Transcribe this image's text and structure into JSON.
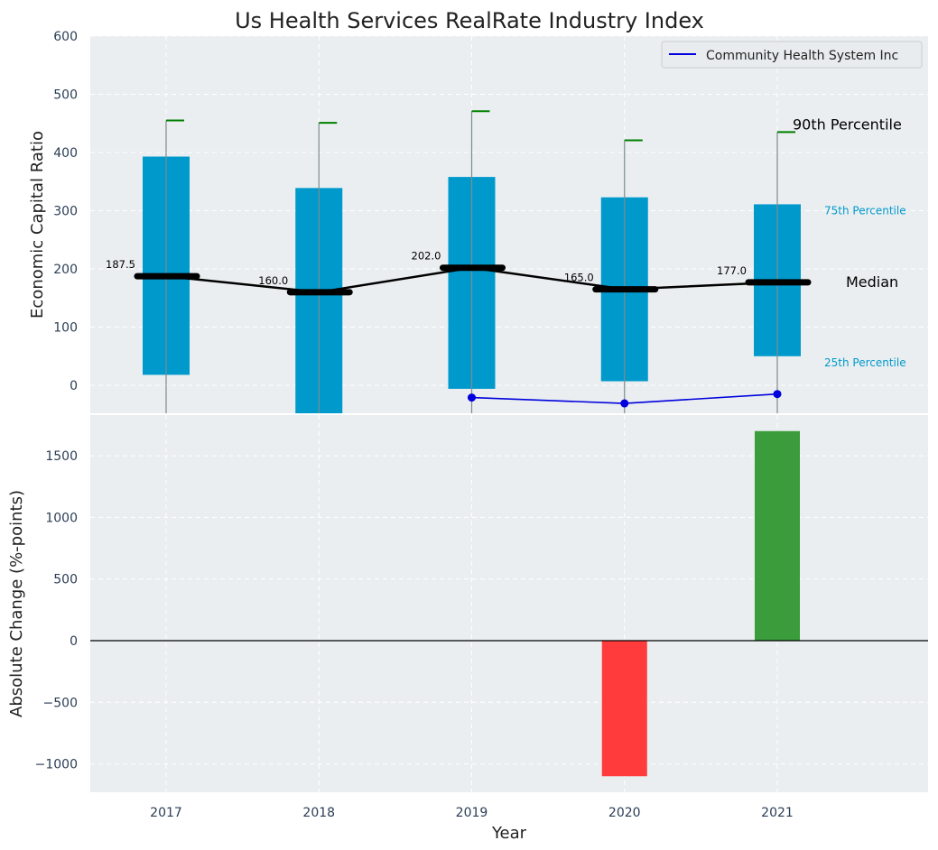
{
  "chart_data": [
    {
      "type": "box",
      "title": "Us Health Services RealRate Industry Index",
      "ylabel": "Economic Capital Ratio",
      "ylim": [
        -48,
        600
      ],
      "yticks": [
        0,
        100,
        200,
        300,
        400,
        500,
        600
      ],
      "categories": [
        "2017",
        "2018",
        "2019",
        "2020",
        "2021"
      ],
      "p25": [
        18,
        -48,
        -6,
        7,
        50
      ],
      "p75": [
        393,
        339,
        358,
        323,
        311
      ],
      "p90": [
        455,
        451,
        471,
        421,
        435
      ],
      "median": [
        187.5,
        160.0,
        202.0,
        165.0,
        177.0
      ],
      "median_labels": [
        "187.5",
        "160.0",
        "202.0",
        "165.0",
        "177.0"
      ],
      "band_labels": {
        "p90": "90th Percentile",
        "p75": "75th Percentile",
        "median": "Median",
        "p25": "25th Percentile"
      },
      "series": [
        {
          "name": "Community Health System Inc",
          "x": [
            "2019",
            "2020",
            "2021"
          ],
          "values": [
            -21,
            -31,
            -15
          ]
        }
      ],
      "legend": "top-right",
      "grid": true,
      "colors": {
        "box": "#0099cc",
        "median": "#000000",
        "whisker_cap": "#008000",
        "company_line": "#0000dd",
        "background": "#eaeef0"
      }
    },
    {
      "type": "bar",
      "ylabel": "Absolute Change (%-points)",
      "xlabel": "Year",
      "ylim": [
        -1230,
        1830
      ],
      "yticks": [
        -1000,
        -500,
        0,
        500,
        1000,
        1500
      ],
      "ytick_labels": [
        "−1000",
        "−500",
        "0",
        "500",
        "1000",
        "1500"
      ],
      "categories": [
        "2017",
        "2018",
        "2019",
        "2020",
        "2021"
      ],
      "values": [
        null,
        null,
        null,
        -1100,
        1700
      ],
      "grid": true,
      "colors": {
        "positive": "#3a9c3a",
        "negative": "#ff3b3b",
        "zero_line": "#000000"
      }
    }
  ]
}
